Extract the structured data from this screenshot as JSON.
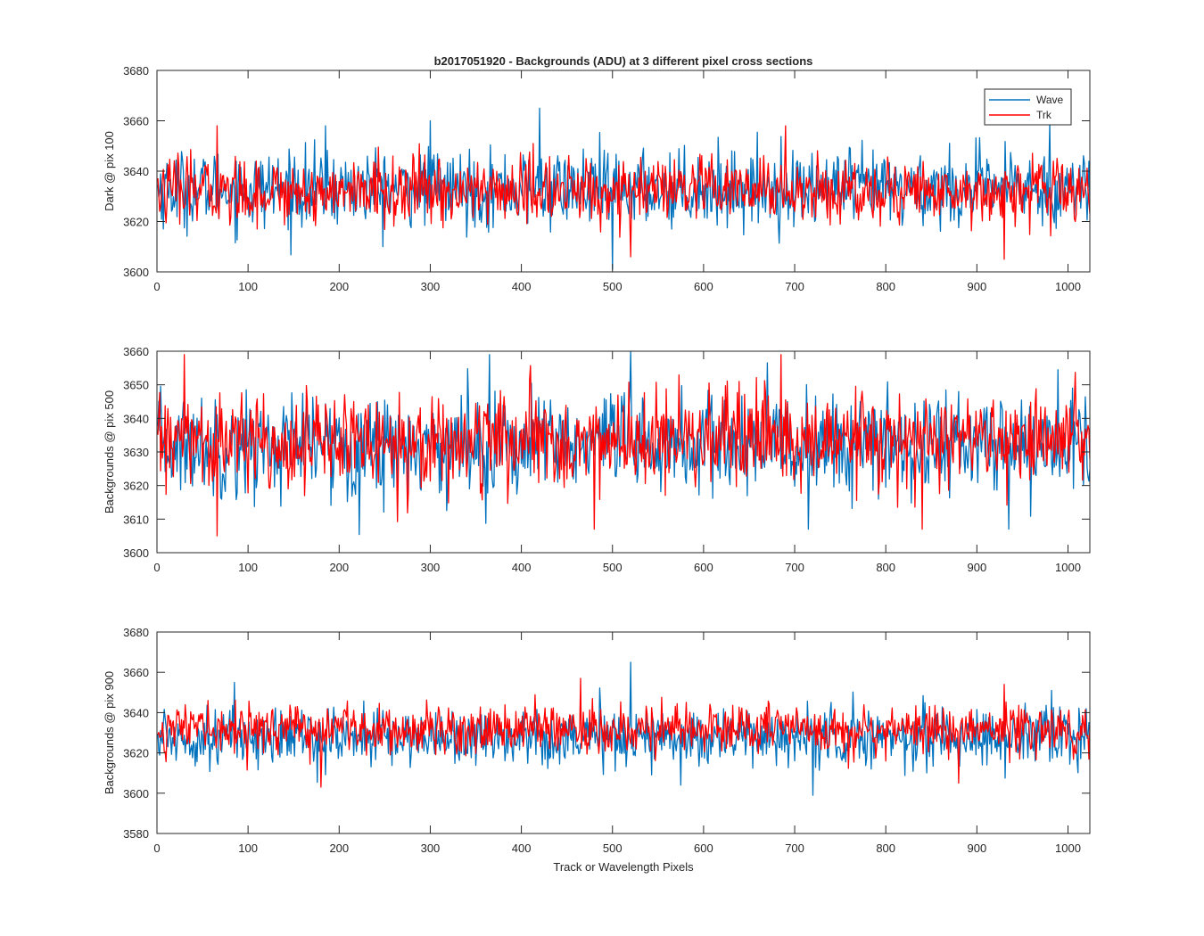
{
  "chart_data": {
    "type": "line",
    "title": "b2017051920 - Backgrounds (ADU) at 3 different pixel cross sections",
    "xlabel": "Track or Wavelength Pixels",
    "legend": {
      "placement": "top-right",
      "entries": [
        "Wave",
        "Trk"
      ]
    },
    "series_colors": {
      "Wave": "#0072BD",
      "Trk": "#FF0000"
    },
    "x_range": [
      0,
      1024
    ],
    "x_ticks": [
      0,
      100,
      200,
      300,
      400,
      500,
      600,
      700,
      800,
      900,
      1000
    ],
    "x_tick_labels": [
      "0",
      "100",
      "200",
      "300",
      "400",
      "500",
      "600",
      "700",
      "800",
      "900",
      "1000"
    ],
    "panels": [
      {
        "ylabel": "Dark @ pix 100",
        "ylim": [
          3600,
          3680
        ],
        "y_ticks": [
          3600,
          3620,
          3640,
          3660,
          3680
        ],
        "y_tick_labels": [
          "3600",
          "3620",
          "3640",
          "3660",
          "3680"
        ],
        "series": [
          {
            "name": "Wave",
            "mean": 3633,
            "spread": 7.5,
            "spikes": [
              [
                420,
                3665
              ],
              [
                500,
                3601
              ],
              [
                185,
                3658
              ],
              [
                300,
                3660
              ],
              [
                980,
                3659
              ]
            ]
          },
          {
            "name": "Trk",
            "mean": 3632,
            "spread": 6.5,
            "spikes": [
              [
                66,
                3658
              ],
              [
                690,
                3658
              ],
              [
                930,
                3605
              ],
              [
                520,
                3606
              ]
            ]
          }
        ]
      },
      {
        "ylabel": "Backgrounds @ pix 500",
        "ylim": [
          3600,
          3660
        ],
        "y_ticks": [
          3600,
          3610,
          3620,
          3630,
          3640,
          3650,
          3660
        ],
        "y_tick_labels": [
          "3600",
          "3610",
          "3620",
          "3630",
          "3640",
          "3650",
          "3660"
        ],
        "series": [
          {
            "name": "Wave",
            "mean": 3632,
            "spread": 7.5,
            "spikes": [
              [
                520,
                3660
              ],
              [
                365,
                3659
              ],
              [
                715,
                3607
              ],
              [
                935,
                3607
              ],
              [
                1005,
                3649
              ]
            ]
          },
          {
            "name": "Trk",
            "mean": 3633,
            "spread": 7.0,
            "spikes": [
              [
                66,
                3605
              ],
              [
                30,
                3659
              ],
              [
                480,
                3607
              ],
              [
                685,
                3659
              ],
              [
                840,
                3607
              ]
            ]
          }
        ]
      },
      {
        "ylabel": "Backgrounds @ pix 900",
        "ylim": [
          3580,
          3680
        ],
        "y_ticks": [
          3580,
          3600,
          3620,
          3640,
          3660,
          3680
        ],
        "y_tick_labels": [
          "3580",
          "3600",
          "3620",
          "3640",
          "3660",
          "3680"
        ],
        "series": [
          {
            "name": "Wave",
            "mean": 3628,
            "spread": 7.0,
            "spikes": [
              [
                520,
                3665
              ],
              [
                720,
                3599
              ],
              [
                85,
                3655
              ],
              [
                575,
                3604
              ]
            ]
          },
          {
            "name": "Trk",
            "mean": 3632,
            "spread": 6.0,
            "spikes": [
              [
                180,
                3603
              ],
              [
                465,
                3657
              ],
              [
                930,
                3654
              ],
              [
                880,
                3605
              ]
            ]
          }
        ]
      }
    ]
  }
}
